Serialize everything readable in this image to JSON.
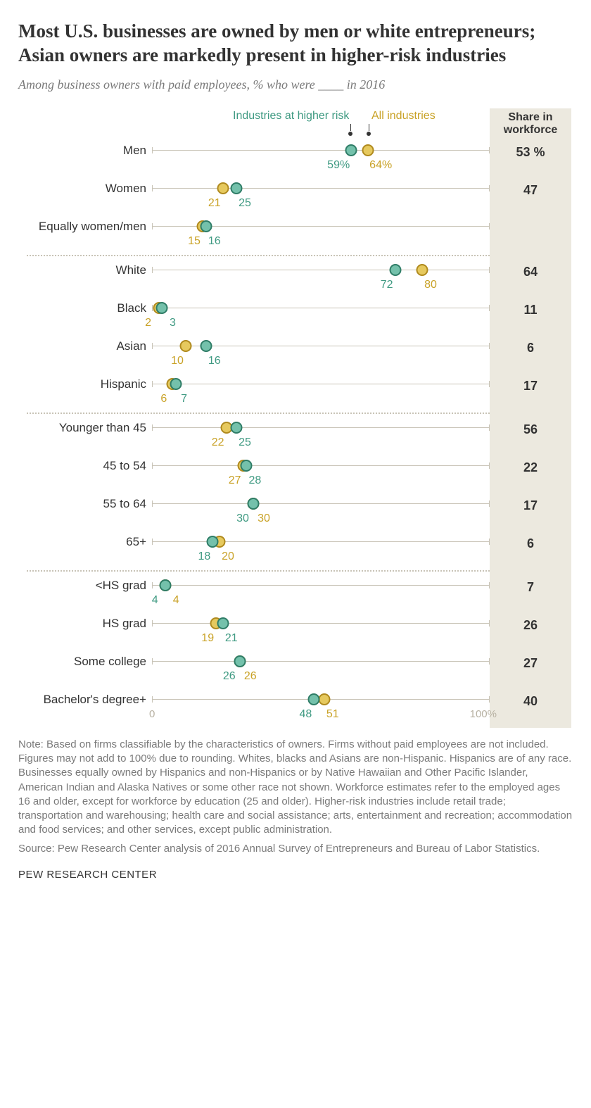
{
  "title": "Most U.S. businesses are owned by men or white entrepreneurs; Asian owners are markedly present in higher-risk industries",
  "subtitle": "Among business owners with paid employees, % who were ____ in 2016",
  "legend": {
    "higher_risk": "Industries at higher risk",
    "all": "All industries",
    "higher_risk_color": "#3f9a82",
    "all_color": "#c9a227"
  },
  "share_header_l1": "Share in",
  "share_header_l2": "workforce",
  "axis": {
    "min": 0,
    "max": 100,
    "zero_label": "0",
    "max_label": "100%"
  },
  "colors": {
    "green_fill": "#74c1ab",
    "green_border": "#2f7d67",
    "green_text": "#3f9a82",
    "gold_fill": "#e6c95e",
    "gold_border": "#b08a1e",
    "gold_text": "#c9a227",
    "grid": "#c8c3b6",
    "share_bg": "#ece9df",
    "title_text": "#333333",
    "subtitle_text": "#7a7a7a",
    "note_text": "#7a7a7a"
  },
  "groups": [
    {
      "rows": [
        {
          "label": "Men",
          "higher": 59,
          "all": 64,
          "higher_txt": "59%",
          "all_txt": "64%",
          "share": "53 %",
          "label_offset_h": -6,
          "label_offset_a": 6
        },
        {
          "label": "Women",
          "higher": 25,
          "all": 21,
          "higher_txt": "25",
          "all_txt": "21",
          "share": "47",
          "label_offset_h": 4,
          "label_offset_a": -4
        },
        {
          "label": "Equally women/men",
          "higher": 16,
          "all": 15,
          "higher_txt": "16",
          "all_txt": "15",
          "share": "",
          "label_offset_h": 4,
          "label_offset_a": -4
        }
      ]
    },
    {
      "rows": [
        {
          "label": "White",
          "higher": 72,
          "all": 80,
          "higher_txt": "72",
          "all_txt": "80",
          "share": "64",
          "label_offset_h": -4,
          "label_offset_a": 4
        },
        {
          "label": "Black",
          "higher": 3,
          "all": 2,
          "higher_txt": "3",
          "all_txt": "2",
          "share": "11",
          "label_offset_h": 5,
          "label_offset_a": -5
        },
        {
          "label": "Asian",
          "higher": 16,
          "all": 10,
          "higher_txt": "16",
          "all_txt": "10",
          "share": "6",
          "label_offset_h": 4,
          "label_offset_a": -4
        },
        {
          "label": "Hispanic",
          "higher": 7,
          "all": 6,
          "higher_txt": "7",
          "all_txt": "6",
          "share": "17",
          "label_offset_h": 4,
          "label_offset_a": -4
        }
      ]
    },
    {
      "rows": [
        {
          "label": "Younger than 45",
          "higher": 25,
          "all": 22,
          "higher_txt": "25",
          "all_txt": "22",
          "share": "56",
          "label_offset_h": 4,
          "label_offset_a": -4
        },
        {
          "label": "45 to 54",
          "higher": 28,
          "all": 27,
          "higher_txt": "28",
          "all_txt": "27",
          "share": "22",
          "label_offset_h": 4,
          "label_offset_a": -4
        },
        {
          "label": "55 to 64",
          "higher": 30,
          "all": 30,
          "higher_txt": "30",
          "all_txt": "30",
          "share": "17",
          "label_offset_h": -5,
          "label_offset_a": 5
        },
        {
          "label": "65+",
          "higher": 18,
          "all": 20,
          "higher_txt": "18",
          "all_txt": "20",
          "share": "6",
          "label_offset_h": -4,
          "label_offset_a": 4
        }
      ]
    },
    {
      "rows": [
        {
          "label": "<HS grad",
          "higher": 4,
          "all": 4,
          "higher_txt": "4",
          "all_txt": "4",
          "share": "7",
          "label_offset_h": -5,
          "label_offset_a": 5
        },
        {
          "label": "HS grad",
          "higher": 21,
          "all": 19,
          "higher_txt": "21",
          "all_txt": "19",
          "share": "26",
          "label_offset_h": 4,
          "label_offset_a": -4
        },
        {
          "label": "Some college",
          "higher": 26,
          "all": 26,
          "higher_txt": "26",
          "all_txt": "26",
          "share": "27",
          "label_offset_h": -5,
          "label_offset_a": 5
        },
        {
          "label": "Bachelor's degree+",
          "higher": 48,
          "all": 51,
          "higher_txt": "48",
          "all_txt": "51",
          "share": "40",
          "label_offset_h": -4,
          "label_offset_a": 4,
          "show_axis_labels": true
        }
      ]
    }
  ],
  "note": "Note: Based on firms classifiable by the characteristics of owners. Firms without paid employees are not included. Figures may not add to 100% due to rounding. Whites, blacks and Asians are non-Hispanic. Hispanics are of any race. Businesses equally owned by Hispanics and non-Hispanics or by Native Hawaiian and Other Pacific Islander, American Indian and Alaska Natives or some other race not shown. Workforce estimates refer to the employed ages 16 and older, except for workforce by education (25 and older). Higher-risk industries include retail trade; transportation and warehousing; health care and social assistance; arts, entertainment and recreation; accommodation and food services; and other services, except public administration.",
  "source": "Source: Pew Research Center analysis of 2016 Annual Survey of Entrepreneurs and Bureau of Labor Statistics.",
  "attribution": "PEW RESEARCH CENTER"
}
